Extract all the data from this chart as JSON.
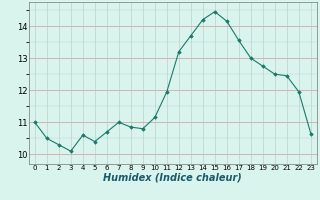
{
  "x": [
    0,
    1,
    2,
    3,
    4,
    5,
    6,
    7,
    8,
    9,
    10,
    11,
    12,
    13,
    14,
    15,
    16,
    17,
    18,
    19,
    20,
    21,
    22,
    23
  ],
  "y": [
    11.0,
    10.5,
    10.3,
    10.1,
    10.6,
    10.4,
    10.7,
    11.0,
    10.85,
    10.8,
    11.15,
    11.95,
    13.2,
    13.7,
    14.2,
    14.45,
    14.15,
    13.55,
    13.0,
    12.75,
    12.5,
    12.45,
    11.95,
    10.65
  ],
  "line_color": "#1a7a6a",
  "marker": "D",
  "markersize": 1.8,
  "linewidth": 0.8,
  "bg_color": "#d8f4ec",
  "xlabel": "Humidex (Indice chaleur)",
  "xlabel_fontsize": 7,
  "ylabel_ticks": [
    10,
    11,
    12,
    13,
    14
  ],
  "xlim": [
    -0.5,
    23.5
  ],
  "ylim": [
    9.7,
    14.75
  ],
  "xtick_fontsize": 5,
  "ytick_fontsize": 6,
  "grid_major_y_color": "#d4a8a8",
  "grid_major_x_color": "#c0d0cc",
  "spine_color": "#777777"
}
